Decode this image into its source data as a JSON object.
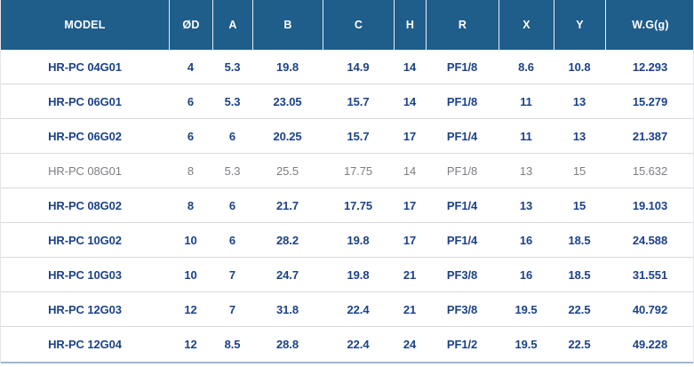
{
  "colors": {
    "header_bg": "#1f5d8b",
    "header_divider": "rgba(255,255,255,0.9)",
    "body_text": "#1c4287",
    "muted_text": "#7d7e84",
    "row_divider": "#dadada",
    "bottom_border": "#9fb6d6",
    "edge": "#e6e6e8"
  },
  "table": {
    "columns": [
      {
        "key": "model",
        "label": "MODEL"
      },
      {
        "key": "od",
        "label": "ØD"
      },
      {
        "key": "a",
        "label": "A"
      },
      {
        "key": "b",
        "label": "B"
      },
      {
        "key": "c",
        "label": "C"
      },
      {
        "key": "h",
        "label": "H"
      },
      {
        "key": "r",
        "label": "R"
      },
      {
        "key": "x",
        "label": "X"
      },
      {
        "key": "y",
        "label": "Y"
      },
      {
        "key": "wg",
        "label": "W.G(g)"
      }
    ],
    "rows": [
      {
        "model": "HR-PC 04G01",
        "values": [
          "4",
          "5.3",
          "19.8",
          "14.9",
          "14",
          "PF1/8",
          "8.6",
          "10.8",
          "12.293"
        ],
        "muted": false
      },
      {
        "model": "HR-PC 06G01",
        "values": [
          "6",
          "5.3",
          "23.05",
          "15.7",
          "14",
          "PF1/8",
          "11",
          "13",
          "15.279"
        ],
        "muted": false
      },
      {
        "model": "HR-PC 06G02",
        "values": [
          "6",
          "6",
          "20.25",
          "15.7",
          "17",
          "PF1/4",
          "11",
          "13",
          "21.387"
        ],
        "muted": false
      },
      {
        "model": "HR-PC 08G01",
        "values": [
          "8",
          "5.3",
          "25.5",
          "17.75",
          "14",
          "PF1/8",
          "13",
          "15",
          "15.632"
        ],
        "muted": true
      },
      {
        "model": "HR-PC 08G02",
        "values": [
          "8",
          "6",
          "21.7",
          "17.75",
          "17",
          "PF1/4",
          "13",
          "15",
          "19.103"
        ],
        "muted": false
      },
      {
        "model": "HR-PC 10G02",
        "values": [
          "10",
          "6",
          "28.2",
          "19.8",
          "17",
          "PF1/4",
          "16",
          "18.5",
          "24.588"
        ],
        "muted": false
      },
      {
        "model": "HR-PC 10G03",
        "values": [
          "10",
          "7",
          "24.7",
          "19.8",
          "21",
          "PF3/8",
          "16",
          "18.5",
          "31.551"
        ],
        "muted": false
      },
      {
        "model": "HR-PC 12G03",
        "values": [
          "12",
          "7",
          "31.8",
          "22.4",
          "21",
          "PF3/8",
          "19.5",
          "22.5",
          "40.792"
        ],
        "muted": false
      },
      {
        "model": "HR-PC 12G04",
        "values": [
          "12",
          "8.5",
          "28.8",
          "22.4",
          "24",
          "PF1/2",
          "19.5",
          "22.5",
          "49.228"
        ],
        "muted": false
      }
    ]
  },
  "chart_data": {
    "type": "table",
    "title": "",
    "columns": [
      "MODEL",
      "ØD",
      "A",
      "B",
      "C",
      "H",
      "R",
      "X",
      "Y",
      "W.G(g)"
    ],
    "rows": [
      [
        "HR-PC 04G01",
        4,
        5.3,
        19.8,
        14.9,
        14,
        "PF1/8",
        8.6,
        10.8,
        12.293
      ],
      [
        "HR-PC 06G01",
        6,
        5.3,
        23.05,
        15.7,
        14,
        "PF1/8",
        11,
        13,
        15.279
      ],
      [
        "HR-PC 06G02",
        6,
        6,
        20.25,
        15.7,
        17,
        "PF1/4",
        11,
        13,
        21.387
      ],
      [
        "HR-PC 08G01",
        8,
        5.3,
        25.5,
        17.75,
        14,
        "PF1/8",
        13,
        15,
        15.632
      ],
      [
        "HR-PC 08G02",
        8,
        6,
        21.7,
        17.75,
        17,
        "PF1/4",
        13,
        15,
        19.103
      ],
      [
        "HR-PC 10G02",
        10,
        6,
        28.2,
        19.8,
        17,
        "PF1/4",
        16,
        18.5,
        24.588
      ],
      [
        "HR-PC 10G03",
        10,
        7,
        24.7,
        19.8,
        21,
        "PF3/8",
        16,
        18.5,
        31.551
      ],
      [
        "HR-PC 12G03",
        12,
        7,
        31.8,
        22.4,
        21,
        "PF3/8",
        19.5,
        22.5,
        40.792
      ],
      [
        "HR-PC 12G04",
        12,
        8.5,
        28.8,
        22.4,
        24,
        "PF1/2",
        19.5,
        22.5,
        49.228
      ]
    ]
  }
}
